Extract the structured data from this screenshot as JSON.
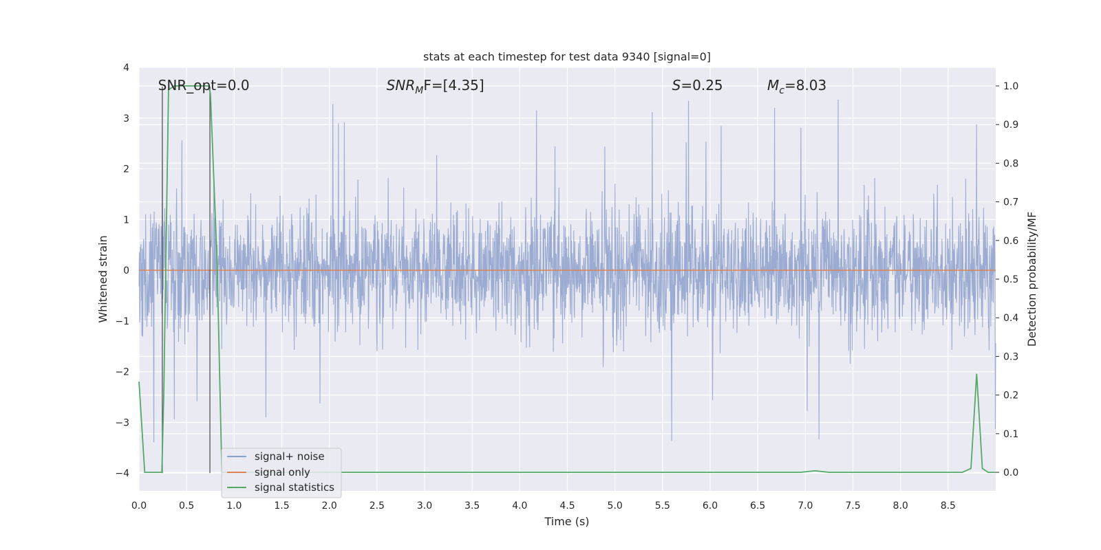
{
  "chart_data": {
    "type": "line",
    "title": "stats at each timestep for test data 9340 [signal=0]",
    "xlabel": "Time (s)",
    "ylabel": "Whitened strain",
    "y2label": "Detection probability/MF",
    "xlim": [
      0.0,
      9.0
    ],
    "ylim": [
      -4.35,
      4.0
    ],
    "y2lim": [
      -0.048,
      1.048
    ],
    "xticks": [
      0.0,
      0.5,
      1.0,
      1.5,
      2.0,
      2.5,
      3.0,
      3.5,
      4.0,
      4.5,
      5.0,
      5.5,
      6.0,
      6.5,
      7.0,
      7.5,
      8.0,
      8.5
    ],
    "xtick_labels": [
      "0.0",
      "0.5",
      "1.0",
      "1.5",
      "2.0",
      "2.5",
      "3.0",
      "3.5",
      "4.0",
      "4.5",
      "5.0",
      "5.5",
      "6.0",
      "6.5",
      "7.0",
      "7.5",
      "8.0",
      "8.5"
    ],
    "yticks": [
      4,
      3,
      2,
      1,
      0,
      -1,
      -2,
      -3,
      -4
    ],
    "ytick_labels": [
      "4",
      "3",
      "2",
      "1",
      "0",
      "−1",
      "−2",
      "−3",
      "−4"
    ],
    "y2ticks": [
      1.0,
      0.9,
      0.8,
      0.7,
      0.6,
      0.5,
      0.4,
      0.3,
      0.2,
      0.1,
      0.0
    ],
    "y2tick_labels": [
      "1.0",
      "0.9",
      "0.8",
      "0.7",
      "0.6",
      "0.5",
      "0.4",
      "0.3",
      "0.2",
      "0.1",
      "0.0"
    ],
    "grid": true,
    "legend_position": "lower-left",
    "annotations": [
      {
        "text": "SNR_opt=0.0",
        "x": 0.2,
        "y": 3.65
      },
      {
        "label": "SNR",
        "sub": "M",
        "suffix": "F=[4.35]",
        "x": 2.6,
        "y": 3.65
      },
      {
        "label": "S",
        "suffix": "=0.25",
        "x": 5.6,
        "y": 3.65
      },
      {
        "label": "M",
        "sub": "c",
        "suffix": "=8.03",
        "x": 6.6,
        "y": 3.65
      }
    ],
    "vertical_lines": [
      {
        "x": 0.245,
        "y": [
          -4.0,
          3.62
        ]
      },
      {
        "x": 0.745,
        "y": [
          -4.0,
          3.62
        ]
      }
    ],
    "series": [
      {
        "name": "signal+ noise",
        "color": "#8da0cb",
        "noise_std": 0.6,
        "typical_max": 2.4,
        "peak_max": 3.62,
        "peak_min": -4.0
      },
      {
        "name": "signal only",
        "color": "#dd8452",
        "x": [
          0.0,
          9.0
        ],
        "y": [
          0.0,
          0.0
        ]
      },
      {
        "name": "signal statistics",
        "color": "#55a868",
        "axis": "right",
        "x": [
          0.0,
          0.06,
          0.24,
          0.26,
          0.31,
          0.37,
          0.42,
          0.73,
          0.75,
          0.82,
          0.87,
          1.0,
          2.0,
          3.0,
          4.0,
          5.0,
          6.0,
          6.95,
          7.1,
          7.25,
          8.0,
          8.65,
          8.74,
          8.8,
          8.86,
          8.92,
          9.0
        ],
        "y": [
          0.235,
          0.0,
          0.0,
          0.2,
          0.99,
          1.0,
          1.0,
          1.0,
          0.98,
          0.55,
          0.0,
          0.0,
          0.0,
          0.0,
          0.0,
          0.0,
          0.0,
          0.0,
          0.004,
          0.0,
          0.0,
          0.0,
          0.01,
          0.255,
          0.01,
          0.0,
          0.0
        ]
      }
    ]
  }
}
